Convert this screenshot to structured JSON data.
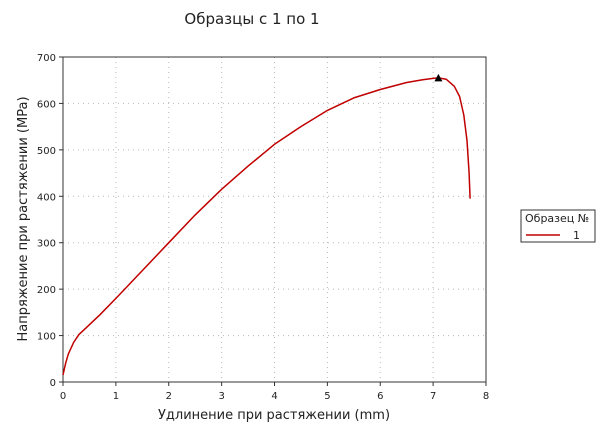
{
  "chart_data": {
    "type": "line",
    "title": "Образцы с 1 по 1",
    "xlabel": "Удлинение при растяжении (mm)",
    "ylabel": "Напряжение при растяжении (MPa)",
    "xlim": [
      0,
      8
    ],
    "ylim": [
      0,
      700
    ],
    "xticks": [
      "0",
      "1",
      "2",
      "3",
      "4",
      "5",
      "6",
      "7",
      "8"
    ],
    "yticks": [
      "0",
      "100",
      "200",
      "300",
      "400",
      "500",
      "600",
      "700"
    ],
    "grid": true,
    "legend": {
      "title": "Образец №",
      "placement": "right",
      "entries": [
        {
          "label": "1",
          "color": "#c00000"
        }
      ]
    },
    "series": [
      {
        "name": "1",
        "color": "#c00000",
        "x": [
          0.0,
          0.05,
          0.1,
          0.2,
          0.3,
          0.45,
          0.7,
          1.0,
          1.5,
          2.0,
          2.5,
          3.0,
          3.5,
          4.0,
          4.5,
          5.0,
          5.5,
          6.0,
          6.5,
          6.8,
          7.0,
          7.1,
          7.25,
          7.4,
          7.5,
          7.58,
          7.64,
          7.68,
          7.7
        ],
        "y": [
          15,
          40,
          60,
          85,
          102,
          118,
          145,
          180,
          240,
          300,
          360,
          415,
          465,
          512,
          550,
          585,
          612,
          630,
          645,
          651,
          654,
          655,
          652,
          637,
          615,
          575,
          520,
          450,
          395
        ]
      }
    ],
    "markers": [
      {
        "x": 7.1,
        "y": 655,
        "shape": "triangle"
      }
    ]
  }
}
